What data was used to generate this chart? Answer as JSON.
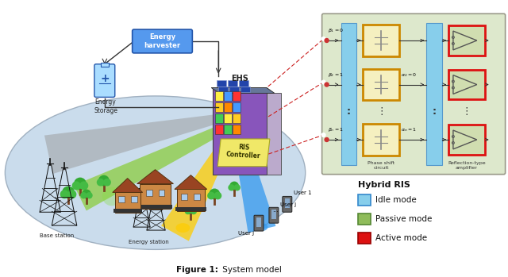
{
  "title": "Figure 1: System model",
  "figure_title_bold": "Figure 1:",
  "figure_title_rest": " System model",
  "bg_color": "#ffffff",
  "ellipse_color": "#c5d9ea",
  "hybrid_ris_box_color": "#dde8cc",
  "idle_color": "#87ceeb",
  "passive_color": "#8fbc5a",
  "active_color": "#dd1111",
  "phase_shift_border": "#cc8800",
  "phase_shift_fill": "#f5f0c0",
  "amplifier_fill": "#d0ddb0",
  "labels": {
    "ehs": "EHS",
    "energy_harvester": "Energy\nharvester",
    "energy_storage": "Energy\nStorage",
    "ris_controller": "RIS\nController",
    "base_station": "Base station",
    "energy_station": "Energy station",
    "user1": "User 1",
    "userj": "User j",
    "userJ": "User J",
    "hybrid_ris": "Hybrid RIS",
    "idle_mode": "Idle mode",
    "passive_mode": "Passive mode",
    "active_mode": "Active mode",
    "phase_shift": "Phase shift\ncircuit",
    "reflection_amp": "Reflection-type\namplifier"
  }
}
